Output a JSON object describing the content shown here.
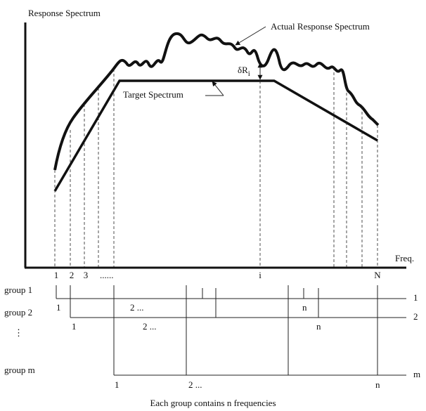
{
  "title": "Response Spectrum",
  "x_label": "Freq.",
  "actual_label": "Actual Response Spectrum",
  "target_label": "Target Spectrum",
  "delta_label": {
    "main": "δR",
    "sub": "i"
  },
  "axis_ticks": [
    "1",
    "2",
    "3",
    "......",
    "i",
    "N"
  ],
  "groups": [
    {
      "name": "group 1",
      "end_label": "1",
      "members": [
        "1",
        "2 ...",
        "n"
      ]
    },
    {
      "name": "group 2",
      "end_label": "2",
      "members": [
        "1",
        "2 ...",
        "n"
      ]
    },
    {
      "name": "⋮"
    },
    {
      "name": "group m",
      "end_label": "m",
      "members": [
        "1",
        "2 ...",
        "n"
      ]
    }
  ],
  "caption": "Each group contains n frequencies"
}
